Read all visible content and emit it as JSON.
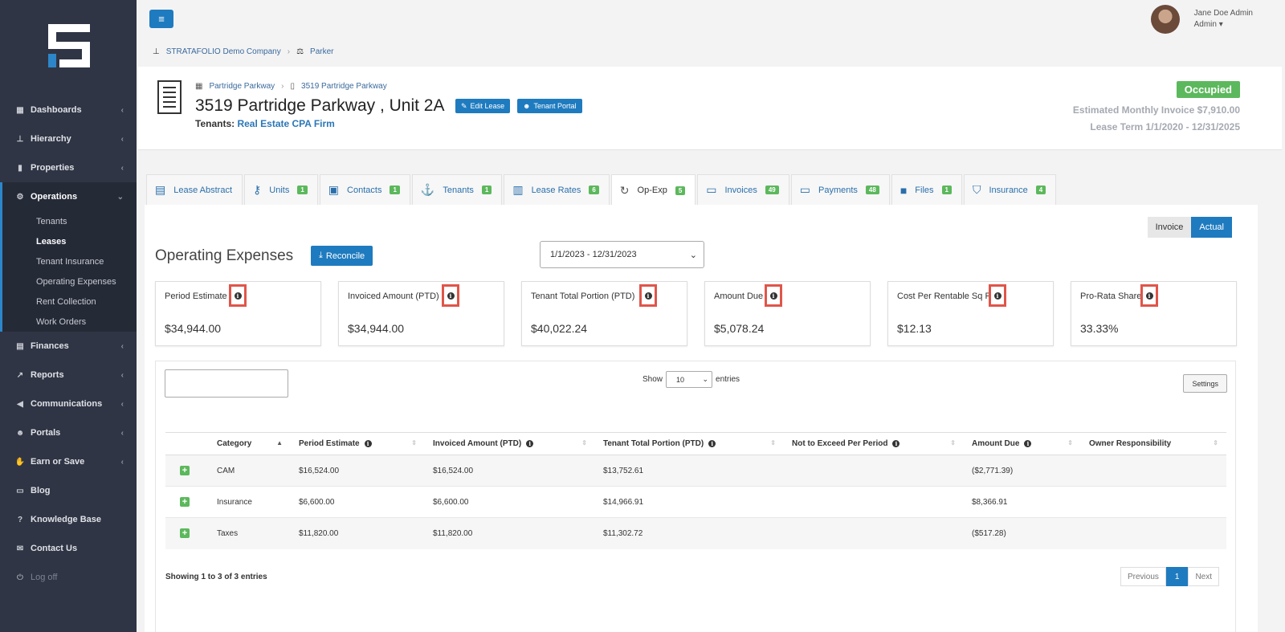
{
  "sidebar": {
    "items": [
      {
        "label": "Dashboards",
        "icon": "dashboard-icon",
        "glyph": "▦",
        "chevron": "‹"
      },
      {
        "label": "Hierarchy",
        "icon": "hierarchy-icon",
        "glyph": "⊥",
        "chevron": "‹"
      },
      {
        "label": "Properties",
        "icon": "bar-chart-icon",
        "glyph": "▮",
        "chevron": "‹"
      },
      {
        "label": "Operations",
        "icon": "cogs-icon",
        "glyph": "⚙",
        "chevron": "⌄"
      }
    ],
    "subitems": [
      "Tenants",
      "Leases",
      "Tenant Insurance",
      "Operating Expenses",
      "Rent Collection",
      "Work Orders"
    ],
    "items_after": [
      {
        "label": "Finances",
        "icon": "money-icon",
        "glyph": "▤",
        "chevron": "‹"
      },
      {
        "label": "Reports",
        "icon": "line-chart-icon",
        "glyph": "↗",
        "chevron": "‹"
      },
      {
        "label": "Communications",
        "icon": "bullhorn-icon",
        "glyph": "◀",
        "chevron": "‹"
      },
      {
        "label": "Portals",
        "icon": "users-icon",
        "glyph": "☻",
        "chevron": "‹"
      },
      {
        "label": "Earn or Save",
        "icon": "thumbs-up-icon",
        "glyph": "✋",
        "chevron": "‹"
      },
      {
        "label": "Blog",
        "icon": "newspaper-icon",
        "glyph": "▭",
        "chevron": ""
      },
      {
        "label": "Knowledge Base",
        "icon": "question-icon",
        "glyph": "?",
        "chevron": ""
      },
      {
        "label": "Contact Us",
        "icon": "envelope-icon",
        "glyph": "✉",
        "chevron": ""
      }
    ],
    "logoff": "Log off"
  },
  "topbar": {
    "menu_glyph": "≡",
    "user_name": "Jane Doe Admin",
    "user_role": "Admin ▾"
  },
  "breadcrumb": {
    "company": "STRATAFOLIO Demo Company",
    "separator": "›",
    "entity": "Parker"
  },
  "header": {
    "crumb_property": "Partridge Parkway",
    "crumb_building": "3519 Partridge Parkway",
    "crumb_sep": "›",
    "title": "3519 Partridge Parkway , Unit 2A",
    "edit_lease": "Edit Lease",
    "tenant_portal": "Tenant Portal",
    "tenants_label": "Tenants:",
    "tenant_name": "Real Estate CPA Firm",
    "status": "Occupied",
    "estimated_invoice": "Estimated Monthly Invoice $7,910.00",
    "lease_term": "Lease Term 1/1/2020 - 12/31/2025",
    "colors": {
      "status": "#5cb85c",
      "accent": "#1f7bbf"
    }
  },
  "tabs": [
    {
      "label": "Lease Abstract",
      "badge": "",
      "icon": "lease-abstract-icon",
      "glyph": "▤"
    },
    {
      "label": "Units",
      "badge": "1",
      "icon": "key-icon",
      "glyph": "⚷"
    },
    {
      "label": "Contacts",
      "badge": "1",
      "icon": "contact-card-icon",
      "glyph": "▣"
    },
    {
      "label": "Tenants",
      "badge": "1",
      "icon": "tenant-icon",
      "glyph": "⚓"
    },
    {
      "label": "Lease Rates",
      "badge": "6",
      "icon": "document-icon",
      "glyph": "▥"
    },
    {
      "label": "Op-Exp",
      "badge": "5",
      "icon": "money-cycle-icon",
      "glyph": "↻"
    },
    {
      "label": "Invoices",
      "badge": "49",
      "icon": "invoice-icon",
      "glyph": "▭"
    },
    {
      "label": "Payments",
      "badge": "48",
      "icon": "payment-icon",
      "glyph": "▭"
    },
    {
      "label": "Files",
      "badge": "1",
      "icon": "folder-icon",
      "glyph": "■"
    },
    {
      "label": "Insurance",
      "badge": "4",
      "icon": "shield-icon",
      "glyph": "⛉"
    }
  ],
  "main": {
    "toggle_invoice": "Invoice",
    "toggle_actual": "Actual",
    "title": "Operating Expenses",
    "reconcile": "Reconcile",
    "reconcile_glyph": "⤓",
    "period": "1/1/2023 - 12/31/2023",
    "caret": "⌄",
    "info_glyph": "i"
  },
  "cards": [
    {
      "label": "Period Estimate",
      "value": "$34,944.00"
    },
    {
      "label": "Invoiced Amount (PTD)",
      "value": "$34,944.00"
    },
    {
      "label": "Tenant Total Portion (PTD)",
      "value": "$40,022.24"
    },
    {
      "label": "Amount Due",
      "value": "$5,078.24"
    },
    {
      "label": "Cost Per Rentable Sq Ft",
      "value": "$12.13"
    },
    {
      "label": "Pro-Rata Share",
      "value": "33.33%"
    }
  ],
  "table": {
    "show_label": "Show",
    "entries_label": "entries",
    "page_size": "10",
    "settings": "Settings",
    "headers": [
      "",
      "Category",
      "Period Estimate",
      "Invoiced Amount (PTD)",
      "Tenant Total Portion (PTD)",
      "Not to Exceed Per Period",
      "Amount Due",
      "Owner Responsibility"
    ],
    "rows": [
      [
        "+",
        "CAM",
        "$16,524.00",
        "$16,524.00",
        "$13,752.61",
        "",
        "($2,771.39)",
        ""
      ],
      [
        "+",
        "Insurance",
        "$6,600.00",
        "$6,600.00",
        "$14,966.91",
        "",
        "$8,366.91",
        ""
      ],
      [
        "+",
        "Taxes",
        "$11,820.00",
        "$11,820.00",
        "$11,302.72",
        "",
        "($517.28)",
        ""
      ]
    ],
    "sort_glyph_asc": "▲",
    "sort_glyph": "⇕",
    "showing": "Showing 1 to 3 of 3 entries",
    "previous": "Previous",
    "page": "1",
    "next": "Next"
  }
}
